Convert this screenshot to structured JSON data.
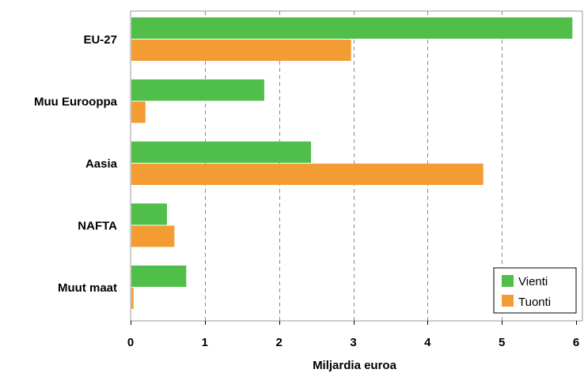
{
  "chart_data": {
    "type": "bar",
    "orientation": "horizontal",
    "categories": [
      "EU-27",
      "Muu Eurooppa",
      "Aasia",
      "NAFTA",
      "Muut maat"
    ],
    "series": [
      {
        "name": "Vienti",
        "color": "#4fbf4a",
        "values": [
          5.95,
          1.8,
          2.43,
          0.49,
          0.75
        ]
      },
      {
        "name": "Tuonti",
        "color": "#f39c34",
        "values": [
          2.97,
          0.2,
          4.75,
          0.59,
          0.04
        ]
      }
    ],
    "xlabel": "Miljardia euroa",
    "ylabel": "",
    "xlim": [
      0,
      6
    ],
    "xticks": [
      "0",
      "1",
      "2",
      "3",
      "4",
      "5",
      "6"
    ],
    "grid": "vertical-dashed",
    "legend_position": "bottom-right"
  }
}
